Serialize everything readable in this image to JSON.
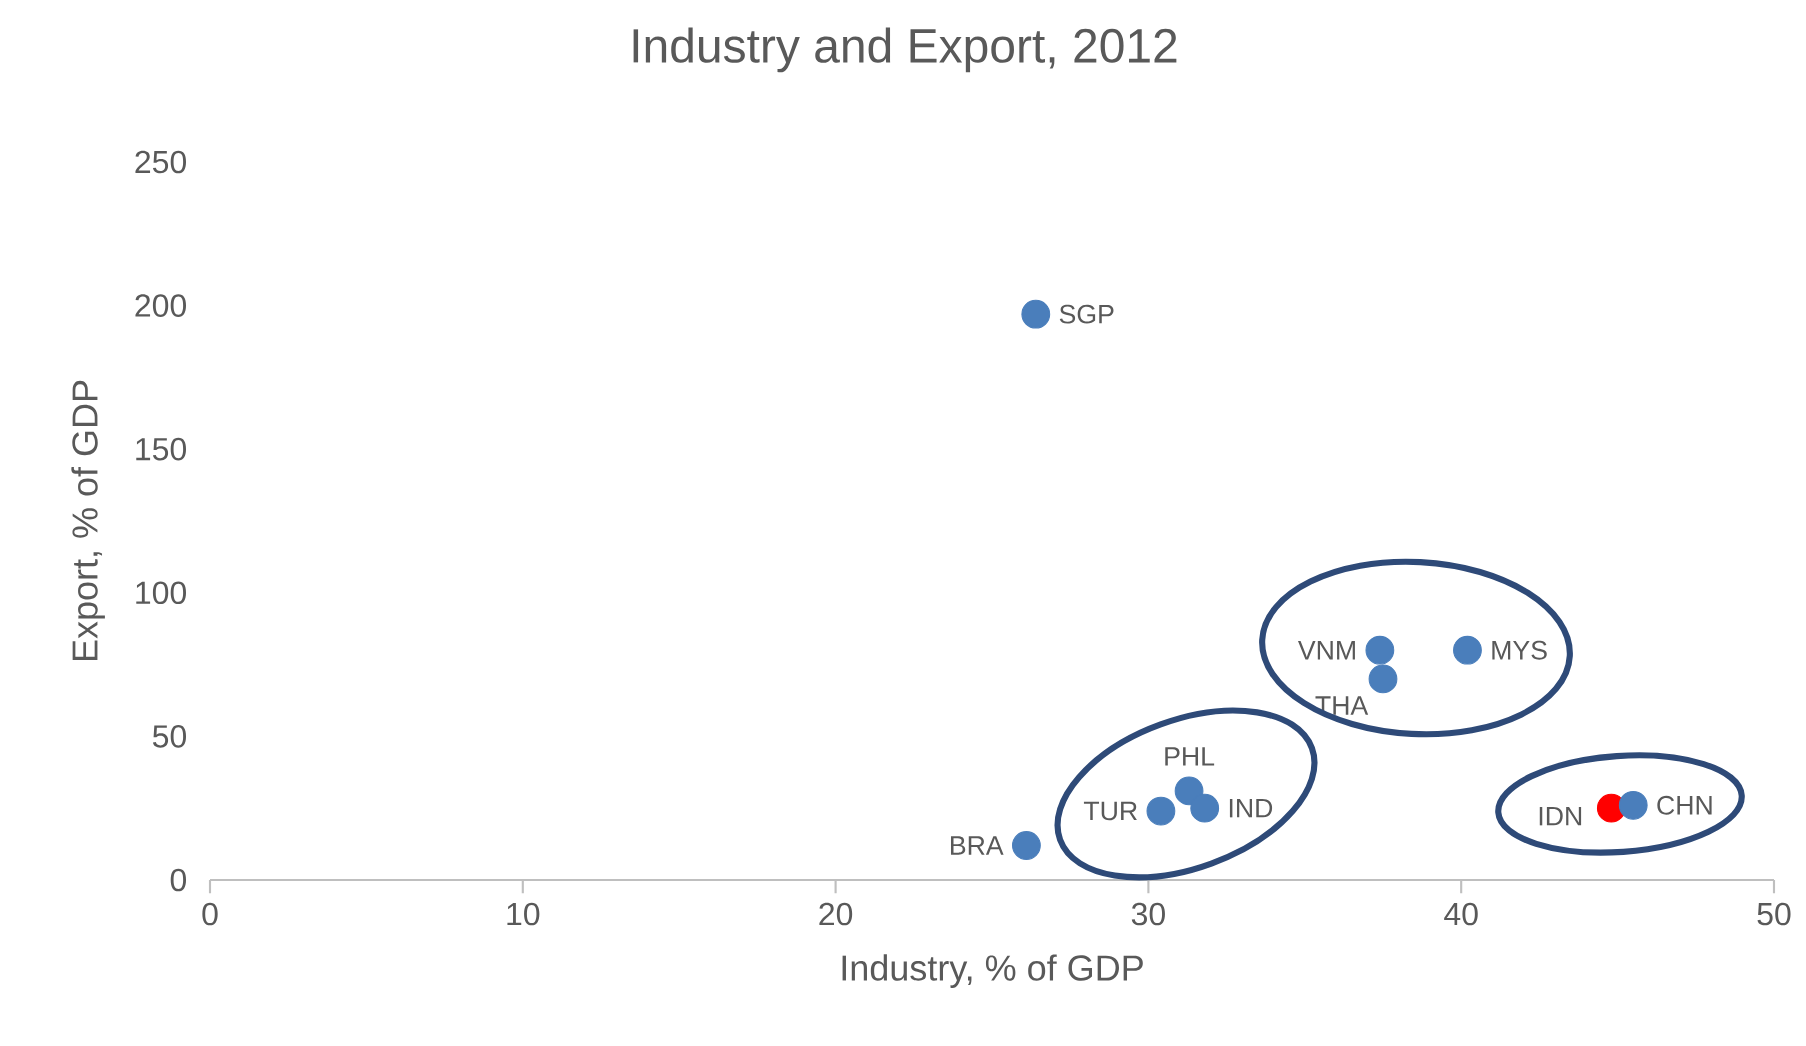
{
  "chart_data": {
    "type": "scatter",
    "title": "Industry and Export, 2012",
    "xlabel": "Industry, % of GDP",
    "ylabel": "Export, % of GDP",
    "x": [
      26.4,
      37.4,
      40.2,
      37.5,
      31.3,
      30.4,
      31.8,
      26.1,
      44.8,
      45.5
    ],
    "series": [
      {
        "values": [
          197,
          80,
          80,
          70,
          31,
          24,
          25,
          12,
          25,
          26
        ],
        "colors": [
          "#4a7ebb",
          "#4a7ebb",
          "#4a7ebb",
          "#4a7ebb",
          "#4a7ebb",
          "#4a7ebb",
          "#4a7ebb",
          "#4a7ebb",
          "#ff0000",
          "#4a7ebb"
        ]
      }
    ],
    "xlim": [
      0,
      50
    ],
    "ylim": [
      0,
      250
    ],
    "xticks": [
      0,
      10,
      20,
      30,
      40,
      50
    ],
    "yticks": [
      0,
      50,
      100,
      150,
      200,
      250
    ],
    "marker": "circle",
    "annotations": [
      {
        "text": "SGP",
        "x": 26.4,
        "y": 197
      },
      {
        "text": "VNM",
        "x": 37.4,
        "y": 80
      },
      {
        "text": "MYS",
        "x": 40.2,
        "y": 80
      },
      {
        "text": "THA",
        "x": 37.5,
        "y": 70
      },
      {
        "text": "PHL",
        "x": 31.3,
        "y": 31
      },
      {
        "text": "TUR",
        "x": 30.4,
        "y": 24
      },
      {
        "text": "IND",
        "x": 31.8,
        "y": 25
      },
      {
        "text": "BRA",
        "x": 26.1,
        "y": 12
      },
      {
        "text": "IDN",
        "x": 44.8,
        "y": 25
      },
      {
        "text": "CHN",
        "x": 45.5,
        "y": 26
      }
    ]
  }
}
